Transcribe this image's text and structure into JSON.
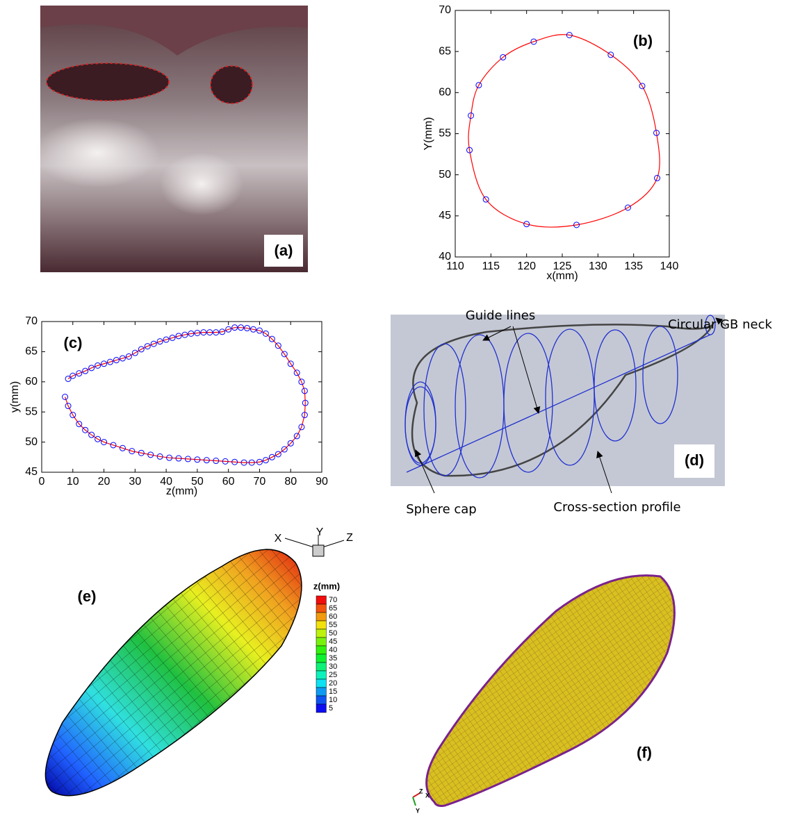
{
  "figure": {
    "panel_a": {
      "label": "(a)"
    },
    "panel_d": {
      "label": "(d)",
      "annotations": [
        "Guide lines",
        "Circular GB neck",
        "Sphere cap",
        "Cross-section profile"
      ]
    },
    "panel_e": {
      "label": "(e)",
      "axes": [
        "X",
        "Y",
        "Z"
      ],
      "colorbar": {
        "title": "z(mm)",
        "ticks": [
          70,
          65,
          60,
          55,
          50,
          45,
          40,
          35,
          30,
          25,
          20,
          15,
          10,
          5
        ]
      }
    },
    "panel_f": {
      "label": "(f)",
      "axes": [
        "Z",
        "X",
        "Y"
      ]
    }
  },
  "chart_data": [
    {
      "type": "line",
      "title": "(b)",
      "x_label": "x(mm)",
      "y_label": "Y(mm)",
      "closed": true,
      "series": [
        {
          "color": "#0000ff",
          "line_color": "#ff0000",
          "x": [
            126,
            131.8,
            136.2,
            138.2,
            138.3,
            134.2,
            127,
            120,
            114.3,
            112,
            112.2,
            113.3,
            116.7,
            121
          ],
          "values": [
            67,
            64.6,
            60.8,
            55.1,
            49.6,
            46,
            43.9,
            44,
            47,
            53,
            57.2,
            60.9,
            64.3,
            66.2
          ]
        }
      ],
      "xlim": [
        110,
        140
      ],
      "xticks": [
        110,
        115,
        120,
        125,
        130,
        135,
        140
      ],
      "ylim": [
        40,
        70
      ],
      "yticks": [
        40,
        45,
        50,
        55,
        60,
        65,
        70
      ]
    },
    {
      "type": "line",
      "title": "(c)",
      "x_label": "z(mm)",
      "y_label": "y(mm)",
      "closed": false,
      "series": [
        {
          "color": "#0000ff",
          "line_color": "#ff0000",
          "x": [
            8.5,
            10,
            12,
            14,
            16,
            18,
            20,
            22,
            24,
            26,
            28,
            30,
            32,
            34,
            36,
            38,
            40,
            42,
            44,
            46,
            48,
            50,
            52,
            54,
            56,
            58,
            60,
            62,
            64,
            66,
            68,
            70,
            72,
            74,
            76,
            78,
            80,
            82,
            83.5,
            84.5,
            84.7,
            84.5,
            83.5,
            82,
            80,
            78,
            76,
            74,
            72,
            70,
            67.5,
            65,
            62,
            59,
            56,
            53,
            50,
            47,
            44,
            41,
            38,
            35,
            32,
            29,
            26,
            23,
            20,
            18,
            16,
            14,
            12,
            10,
            8.5,
            7.5
          ],
          "values": [
            60.5,
            61,
            61.4,
            61.8,
            62.3,
            62.7,
            63,
            63.3,
            63.6,
            63.9,
            64.2,
            64.8,
            65.4,
            65.9,
            66.3,
            66.7,
            67,
            67.3,
            67.6,
            67.8,
            68,
            68.1,
            68.2,
            68.2,
            68.2,
            68.3,
            68.7,
            69,
            69,
            68.9,
            68.7,
            68.5,
            68,
            67.1,
            66,
            64.6,
            63,
            61.5,
            60,
            58.5,
            56.5,
            54.5,
            52.5,
            51,
            49.8,
            48.8,
            48,
            47.5,
            47,
            46.7,
            46.6,
            46.6,
            46.7,
            46.8,
            46.9,
            47,
            47.1,
            47.2,
            47.3,
            47.4,
            47.6,
            47.9,
            48.2,
            48.5,
            49,
            49.5,
            50,
            50.5,
            51.2,
            52,
            53,
            54.5,
            56,
            57.5
          ]
        }
      ],
      "xlim": [
        0,
        90
      ],
      "xticks": [
        0,
        10,
        20,
        30,
        40,
        50,
        60,
        70,
        80,
        90
      ],
      "ylim": [
        45,
        70
      ],
      "yticks": [
        45,
        50,
        55,
        60,
        65,
        70
      ]
    }
  ]
}
